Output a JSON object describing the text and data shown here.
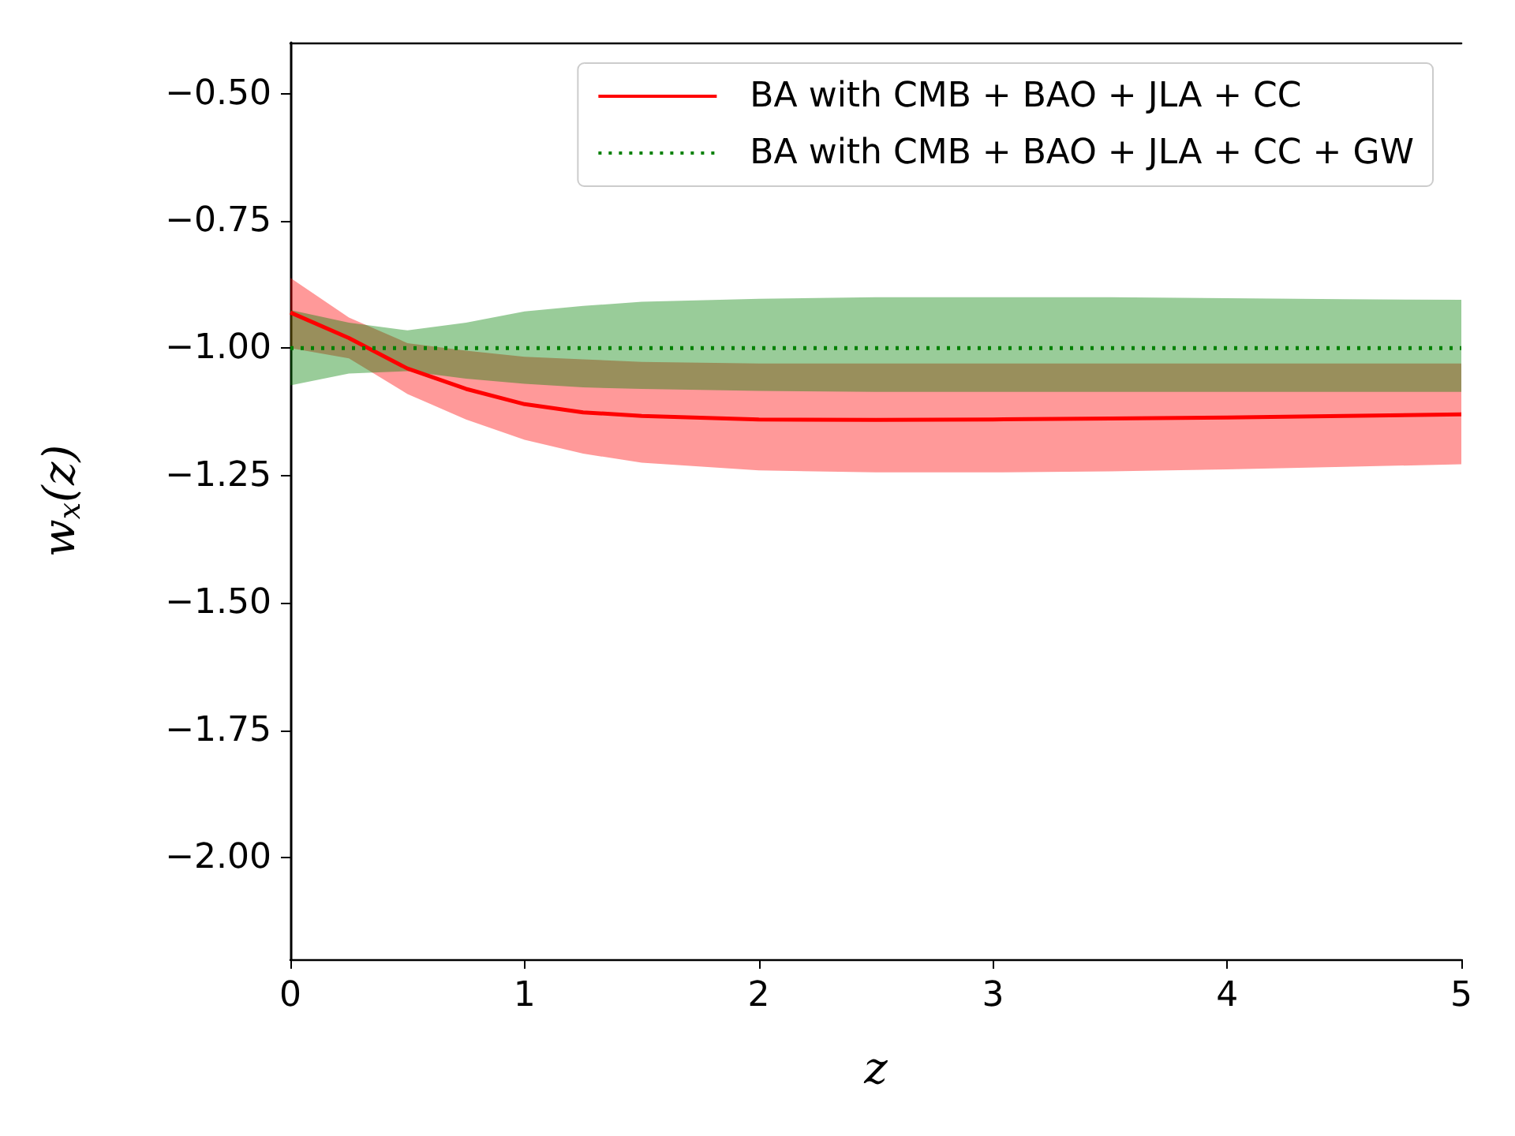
{
  "chart_data": {
    "type": "line",
    "xlabel": "z",
    "ylabel": "w$_{x}$(z)",
    "x": [
      0,
      0.25,
      0.5,
      0.75,
      1,
      1.25,
      1.5,
      2,
      2.5,
      3,
      3.5,
      4,
      4.5,
      5
    ],
    "series": [
      {
        "name": "BA with CMB + BAO + JLA + CC",
        "color": "#ff0000",
        "line_style": "solid",
        "values": [
          -0.93,
          -0.98,
          -1.04,
          -1.08,
          -1.11,
          -1.126,
          -1.133,
          -1.14,
          -1.141,
          -1.14,
          -1.138,
          -1.136,
          -1.133,
          -1.13
        ],
        "upper": [
          -0.862,
          -0.94,
          -0.99,
          -1.005,
          -1.017,
          -1.022,
          -1.027,
          -1.03,
          -1.03,
          -1.03,
          -1.03,
          -1.03,
          -1.03,
          -1.03
        ],
        "lower": [
          -1.0,
          -1.02,
          -1.09,
          -1.14,
          -1.18,
          -1.207,
          -1.225,
          -1.24,
          -1.244,
          -1.244,
          -1.242,
          -1.238,
          -1.233,
          -1.228
        ]
      },
      {
        "name": "BA with CMB + BAO + JLA + CC + GW",
        "color": "#008000",
        "line_style": "dotted",
        "values": [
          -1.0,
          -1.0,
          -1.0,
          -1.0,
          -1.0,
          -1.0,
          -1.0,
          -1.0,
          -1.0,
          -1.0,
          -1.0,
          -1.0,
          -1.0,
          -1.0
        ],
        "upper": [
          -0.925,
          -0.95,
          -0.965,
          -0.95,
          -0.928,
          -0.917,
          -0.909,
          -0.903,
          -0.9,
          -0.9,
          -0.9,
          -0.902,
          -0.904,
          -0.905
        ],
        "lower": [
          -1.073,
          -1.05,
          -1.045,
          -1.06,
          -1.07,
          -1.077,
          -1.08,
          -1.084,
          -1.086,
          -1.086,
          -1.086,
          -1.086,
          -1.086,
          -1.086
        ]
      }
    ],
    "xlim": [
      0,
      5
    ],
    "xticks": [
      0,
      1,
      2,
      3,
      4,
      5
    ],
    "ylim": [
      -2.2,
      -0.4
    ],
    "yticks": [
      {
        "value": -2.0,
        "label": "−2.00"
      },
      {
        "value": -1.75,
        "label": "−1.75"
      },
      {
        "value": -1.5,
        "label": "−1.50"
      },
      {
        "value": -1.25,
        "label": "−1.25"
      },
      {
        "value": -1.0,
        "label": "−1.00"
      },
      {
        "value": -0.75,
        "label": "−0.75"
      },
      {
        "value": -0.5,
        "label": "−0.50"
      }
    ],
    "grid": false,
    "legend": "top right",
    "marker": "none"
  }
}
